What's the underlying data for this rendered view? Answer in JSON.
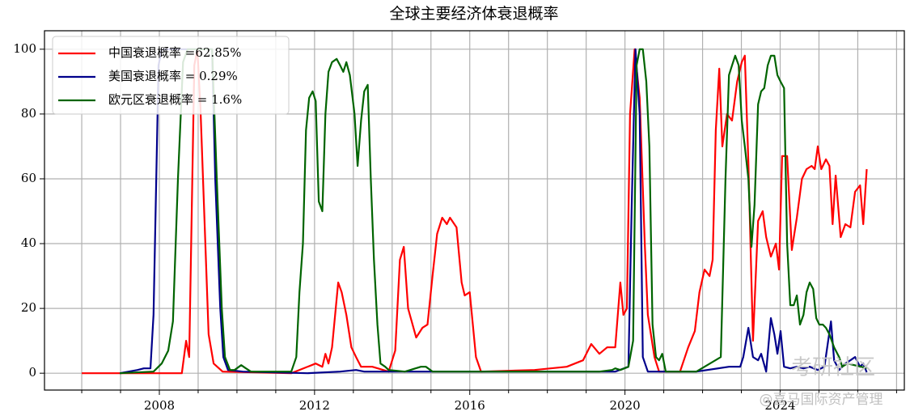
{
  "chart_data": {
    "type": "line",
    "title": "全球主要经济体衰退概率",
    "xlim": [
      2005.04,
      2027.2
    ],
    "ylim": [
      -5.2,
      105.7
    ],
    "xticks": [
      2008,
      2012,
      2016,
      2020,
      2024
    ],
    "xminor_ticks": [
      2006,
      2007,
      2009,
      2010,
      2011,
      2013,
      2014,
      2015,
      2017,
      2018,
      2019,
      2021,
      2022,
      2023,
      2025,
      2026,
      2027
    ],
    "yticks": [
      0,
      20,
      40,
      60,
      80,
      100
    ],
    "grid": true,
    "legend": "upper left",
    "series": [
      {
        "name": "中国衰退概率 =62.85%",
        "color": "#ff0000",
        "x": [
          2006.0,
          2008.58,
          2008.69,
          2008.77,
          2008.9,
          2008.98,
          2009.06,
          2009.27,
          2009.4,
          2009.63,
          2011.4,
          2012.03,
          2012.2,
          2012.28,
          2012.36,
          2012.45,
          2012.53,
          2012.61,
          2012.7,
          2012.82,
          2012.95,
          2013.07,
          2013.2,
          2013.49,
          2013.91,
          2014.08,
          2014.2,
          2014.3,
          2014.41,
          2014.62,
          2014.78,
          2014.91,
          2015.04,
          2015.16,
          2015.29,
          2015.41,
          2015.49,
          2015.66,
          2015.79,
          2015.87,
          2016.0,
          2016.16,
          2016.29,
          2017.67,
          2018.5,
          2018.92,
          2019.13,
          2019.34,
          2019.54,
          2019.75,
          2019.88,
          2019.96,
          2020.05,
          2020.13,
          2020.25,
          2020.38,
          2020.51,
          2020.59,
          2020.76,
          2020.88,
          2021.42,
          2021.63,
          2021.8,
          2021.92,
          2022.05,
          2022.18,
          2022.26,
          2022.34,
          2022.43,
          2022.51,
          2022.63,
          2022.76,
          2022.89,
          2023.01,
          2023.09,
          2023.18,
          2023.3,
          2023.43,
          2023.55,
          2023.64,
          2023.76,
          2023.89,
          2023.97,
          2024.05,
          2024.18,
          2024.3,
          2024.43,
          2024.56,
          2024.68,
          2024.81,
          2024.89,
          2024.97,
          2025.06,
          2025.18,
          2025.27,
          2025.35,
          2025.43,
          2025.56,
          2025.68,
          2025.81,
          2025.93,
          2026.06,
          2026.14,
          2026.23
        ],
        "values": [
          0,
          0,
          10,
          5,
          95,
          100,
          82,
          12,
          3,
          0.5,
          0,
          3,
          2,
          6,
          3,
          8,
          18,
          28,
          25,
          18,
          8,
          5,
          2,
          2,
          0.5,
          7,
          35,
          39,
          20,
          11,
          14,
          15,
          30,
          43,
          48,
          46,
          48,
          45,
          28,
          24,
          25,
          5,
          0.5,
          1,
          2,
          4,
          9,
          6,
          8,
          8,
          28,
          18,
          20,
          80,
          100,
          85,
          40,
          18,
          5,
          0.5,
          0.5,
          8,
          13,
          25,
          32,
          30,
          35,
          75,
          94,
          70,
          80,
          78,
          90,
          96,
          98,
          65,
          10,
          47,
          50,
          42,
          36,
          40,
          32,
          67,
          67,
          38,
          48,
          60,
          63,
          64,
          63,
          70,
          63,
          66,
          64,
          46,
          61,
          42,
          46,
          45,
          56,
          58,
          46,
          63
        ]
      },
      {
        "name": "美国衰退概率 = 0.29%",
        "color": "#00008b",
        "x": [
          2006.98,
          2007.44,
          2007.6,
          2007.77,
          2007.85,
          2007.98,
          2008.06,
          2008.69,
          2009.36,
          2009.44,
          2009.57,
          2009.65,
          2009.77,
          2010.15,
          2011.82,
          2012.66,
          2013.07,
          2013.28,
          2015.58,
          2018.5,
          2019.75,
          2020.09,
          2020.17,
          2020.27,
          2020.38,
          2020.46,
          2020.59,
          2021.84,
          2022.68,
          2022.97,
          2023.05,
          2023.18,
          2023.3,
          2023.43,
          2023.51,
          2023.64,
          2023.76,
          2023.85,
          2023.93,
          2024.01,
          2024.1,
          2024.26,
          2024.43,
          2024.6,
          2024.76,
          2024.97,
          2025.14,
          2025.31,
          2025.39,
          2025.52,
          2025.68,
          2025.81,
          2025.93,
          2026.06,
          2026.14,
          2026.23
        ],
        "values": [
          0,
          1,
          1.5,
          1.5,
          18,
          95,
          100,
          100,
          100,
          60,
          20,
          5,
          1,
          0.5,
          0,
          0.5,
          1,
          0.5,
          0.5,
          0.5,
          0.5,
          2,
          50,
          100,
          80,
          5,
          0.5,
          0.5,
          2,
          2,
          5,
          14,
          5,
          4,
          6,
          0.5,
          17,
          12,
          6,
          13,
          2,
          1.5,
          2,
          1.5,
          2,
          1,
          2,
          16,
          4,
          1,
          3,
          4,
          5,
          2,
          3,
          0.29
        ]
      },
      {
        "name": "欧元区衰退概率 = 1.6%",
        "color": "#006400",
        "x": [
          2006.98,
          2007.85,
          2008.06,
          2008.23,
          2008.35,
          2008.48,
          2008.61,
          2008.73,
          2009.36,
          2009.48,
          2009.61,
          2009.69,
          2009.82,
          2009.94,
          2010.11,
          2010.23,
          2010.36,
          2011.4,
          2011.53,
          2011.61,
          2011.7,
          2011.78,
          2011.86,
          2011.95,
          2012.03,
          2012.11,
          2012.2,
          2012.28,
          2012.36,
          2012.45,
          2012.57,
          2012.66,
          2012.74,
          2012.82,
          2012.91,
          2013.03,
          2013.11,
          2013.2,
          2013.28,
          2013.37,
          2013.45,
          2013.53,
          2013.62,
          2013.7,
          2013.82,
          2013.91,
          2014.33,
          2014.74,
          2014.87,
          2015.04,
          2017.25,
          2019.34,
          2019.67,
          2019.75,
          2019.88,
          2020.09,
          2020.21,
          2020.3,
          2020.38,
          2020.46,
          2020.55,
          2020.63,
          2020.71,
          2020.8,
          2020.88,
          2020.96,
          2021.05,
          2021.84,
          2022.47,
          2022.59,
          2022.68,
          2022.76,
          2022.84,
          2022.93,
          2023.01,
          2023.09,
          2023.18,
          2023.26,
          2023.34,
          2023.43,
          2023.51,
          2023.59,
          2023.68,
          2023.76,
          2023.85,
          2023.93,
          2024.01,
          2024.1,
          2024.18,
          2024.26,
          2024.35,
          2024.43,
          2024.51,
          2024.6,
          2024.68,
          2024.76,
          2024.85,
          2024.93,
          2025.01,
          2025.1,
          2025.18,
          2025.27,
          2025.39,
          2025.52,
          2025.6,
          2025.73,
          2026.23
        ],
        "values": [
          0,
          0.5,
          3,
          7,
          16,
          60,
          96,
          100,
          100,
          60,
          20,
          5,
          1,
          1,
          2.5,
          1.5,
          0.5,
          0.5,
          5,
          25,
          40,
          75,
          85,
          87,
          84,
          53,
          50,
          80,
          93,
          96,
          97,
          95,
          93,
          96,
          92,
          80,
          64,
          78,
          87,
          89,
          60,
          35,
          15,
          3,
          2,
          1,
          0.5,
          2,
          2,
          0.5,
          0.5,
          0.5,
          1,
          1.5,
          1,
          2,
          10,
          95,
          100,
          100,
          90,
          70,
          15,
          5,
          4,
          6,
          0.5,
          0.5,
          5,
          60,
          92,
          95,
          98,
          95,
          78,
          70,
          60,
          39,
          52,
          83,
          87,
          88,
          95,
          98,
          98,
          92,
          90,
          88,
          40,
          21,
          21,
          24,
          15,
          18,
          25,
          28,
          26,
          17,
          15,
          15,
          14,
          12,
          8,
          5,
          2,
          3,
          1.6
        ]
      }
    ],
    "watermarks": [
      "考研社区",
      "@喜马国际资产管理"
    ]
  }
}
